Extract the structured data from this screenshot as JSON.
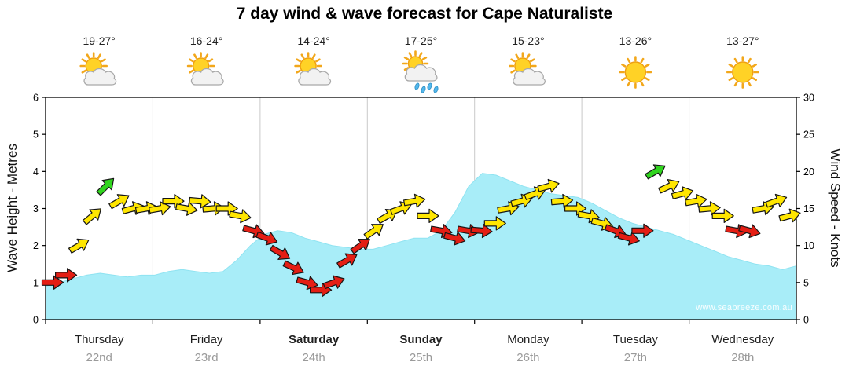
{
  "title": "7 day wind & wave forecast for Cape Naturaliste",
  "watermark": "www.seabreeze.com.au",
  "days": [
    {
      "name": "Thursday",
      "date": "22nd",
      "temp": "19-27°",
      "icon": "partly-cloudy",
      "weekend": false
    },
    {
      "name": "Friday",
      "date": "23rd",
      "temp": "16-24°",
      "icon": "partly-cloudy",
      "weekend": false
    },
    {
      "name": "Saturday",
      "date": "24th",
      "temp": "14-24°",
      "icon": "partly-cloudy",
      "weekend": true
    },
    {
      "name": "Sunday",
      "date": "25th",
      "temp": "17-25°",
      "icon": "rain",
      "weekend": true
    },
    {
      "name": "Monday",
      "date": "26th",
      "temp": "15-23°",
      "icon": "partly-cloudy",
      "weekend": false
    },
    {
      "name": "Tuesday",
      "date": "27th",
      "temp": "13-26°",
      "icon": "sunny",
      "weekend": false
    },
    {
      "name": "Wednesday",
      "date": "28th",
      "temp": "13-27°",
      "icon": "sunny",
      "weekend": false
    }
  ],
  "axes": {
    "left_label": "Wave Height - Metres",
    "right_label": "Wind Speed - Knots",
    "wave_ticks": [
      0,
      1,
      2,
      3,
      4,
      5,
      6
    ],
    "knot_ticks": [
      0,
      5,
      10,
      15,
      20,
      25,
      30
    ],
    "wave_range": [
      0,
      6
    ],
    "knot_range": [
      0,
      30
    ]
  },
  "colors": {
    "wave_fill": "#a8edf8",
    "wave_edge": "#8fe3f1",
    "wind_yellow": "#ffe600",
    "wind_red": "#e41e14",
    "wind_green": "#30d41e",
    "grid": "#c9c9c9",
    "frame": "#000000"
  },
  "chart_data": {
    "type": "area",
    "title": "7 day wind & wave forecast for Cape Naturaliste",
    "x_description": "7 days, 8 samples per day (3-hourly)",
    "samples_per_day": 8,
    "categories_days": [
      "Thursday 22nd",
      "Friday 23rd",
      "Saturday 24th",
      "Sunday 25th",
      "Monday 26th",
      "Tuesday 27th",
      "Wednesday 28th"
    ],
    "grid": "vertical-day-separators",
    "legend": "none",
    "series": [
      {
        "name": "Wave Height",
        "unit": "m",
        "axis": "left",
        "ylim": [
          0,
          6
        ],
        "style": "cyan-area",
        "values": [
          0.9,
          1.0,
          1.1,
          1.2,
          1.25,
          1.2,
          1.15,
          1.2,
          1.2,
          1.3,
          1.35,
          1.3,
          1.25,
          1.3,
          1.6,
          2.0,
          2.3,
          2.4,
          2.35,
          2.2,
          2.1,
          2.0,
          1.95,
          1.9,
          1.9,
          2.0,
          2.1,
          2.2,
          2.2,
          2.4,
          2.9,
          3.6,
          3.95,
          3.9,
          3.75,
          3.6,
          3.5,
          3.4,
          3.35,
          3.3,
          3.15,
          2.95,
          2.75,
          2.6,
          2.5,
          2.4,
          2.3,
          2.15,
          2.0,
          1.85,
          1.7,
          1.6,
          1.5,
          1.45,
          1.35,
          1.45
        ]
      },
      {
        "name": "Wind Speed",
        "unit": "knots",
        "axis": "right",
        "ylim": [
          0,
          30
        ],
        "style": "direction-arrows",
        "values": [
          5,
          6,
          10,
          14,
          18,
          16,
          15,
          15,
          15,
          16,
          15,
          16,
          15,
          15,
          14,
          12,
          11,
          9,
          7,
          5,
          4,
          5,
          8,
          10,
          12,
          14,
          15,
          16,
          14,
          12,
          11,
          12,
          12,
          13,
          15,
          16,
          17,
          18,
          16,
          15,
          14,
          13,
          12,
          11,
          12,
          20,
          18,
          17,
          16,
          15,
          14,
          12,
          12,
          15,
          16,
          14
        ],
        "dir_deg": [
          0,
          0,
          -30,
          -40,
          -45,
          -30,
          -15,
          -10,
          -10,
          0,
          10,
          5,
          -5,
          0,
          10,
          15,
          20,
          30,
          25,
          15,
          0,
          -20,
          -30,
          -35,
          -35,
          -30,
          -20,
          -10,
          0,
          10,
          15,
          10,
          5,
          0,
          -10,
          -15,
          -20,
          -15,
          -5,
          0,
          10,
          15,
          20,
          15,
          0,
          -30,
          -25,
          -15,
          -10,
          -5,
          0,
          10,
          15,
          -10,
          -20,
          -15
        ],
        "colors": [
          "red",
          "red",
          "yellow",
          "yellow",
          "green",
          "yellow",
          "yellow",
          "yellow",
          "yellow",
          "yellow",
          "yellow",
          "yellow",
          "yellow",
          "yellow",
          "yellow",
          "red",
          "red",
          "red",
          "red",
          "red",
          "red",
          "red",
          "red",
          "red",
          "yellow",
          "yellow",
          "yellow",
          "yellow",
          "yellow",
          "red",
          "red",
          "red",
          "red",
          "yellow",
          "yellow",
          "yellow",
          "yellow",
          "yellow",
          "yellow",
          "yellow",
          "yellow",
          "yellow",
          "red",
          "red",
          "red",
          "green",
          "yellow",
          "yellow",
          "yellow",
          "yellow",
          "yellow",
          "red",
          "red",
          "yellow",
          "yellow",
          "yellow"
        ]
      }
    ]
  }
}
